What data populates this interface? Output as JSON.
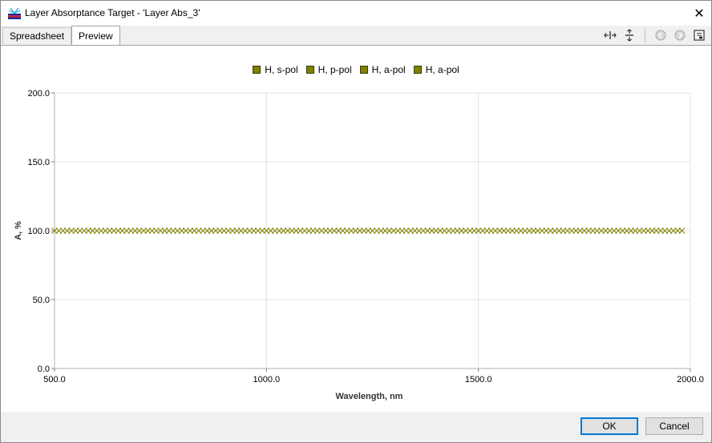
{
  "window": {
    "title": "Layer Absorptance Target - 'Layer Abs_3'",
    "close_glyph": "✕"
  },
  "tabs": [
    {
      "label": "Spreadsheet",
      "active": false
    },
    {
      "label": "Preview",
      "active": true
    }
  ],
  "toolbar": {
    "icons": [
      "fit-width-icon",
      "fit-height-icon",
      "back-icon",
      "forward-icon",
      "export-icon"
    ]
  },
  "chart_data": {
    "type": "scatter",
    "xlabel": "Wavelength, nm",
    "ylabel": "A, %",
    "xlim": [
      500,
      2000
    ],
    "ylim": [
      0,
      200
    ],
    "x_ticks": [
      500,
      1000,
      1500,
      2000
    ],
    "x_tick_labels": [
      "500.0",
      "1000.0",
      "1500.0",
      "2000.0"
    ],
    "y_ticks": [
      0,
      50,
      100,
      150,
      200
    ],
    "y_tick_labels": [
      "0.0",
      "50.0",
      "100.0",
      "150.0",
      "200.0"
    ],
    "grid": true,
    "legend_position": "top-center",
    "marker": "x",
    "color": "#808000",
    "series": [
      {
        "name": "H, s-pol",
        "y_constant": 100
      },
      {
        "name": "H, p-pol",
        "y_constant": 100
      },
      {
        "name": "H, a-pol",
        "y_constant": 100
      },
      {
        "name": "H, a-pol",
        "y_constant": 100
      }
    ],
    "x_start": 500,
    "x_end": 1980,
    "x_step": 10
  },
  "footer": {
    "ok_label": "OK",
    "cancel_label": "Cancel"
  }
}
